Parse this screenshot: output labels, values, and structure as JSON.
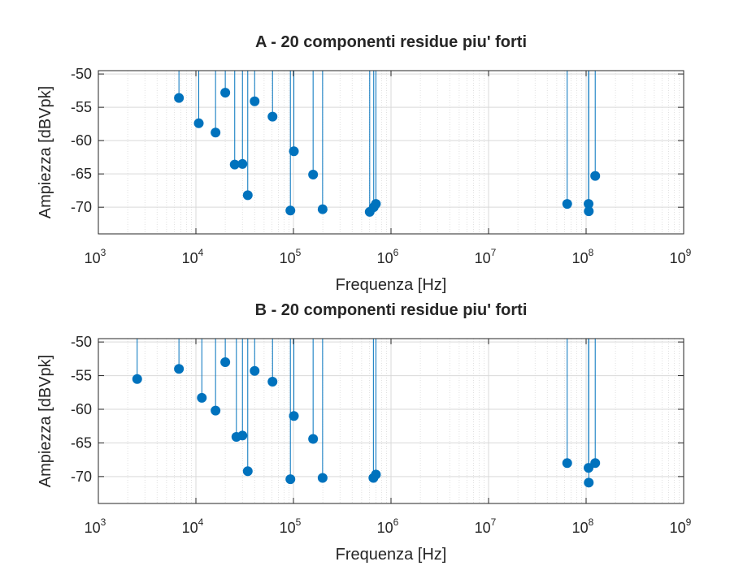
{
  "colors": {
    "series": "#0072bd",
    "grid": "#d9d9d9",
    "axis": "#262626"
  },
  "chart_data": [
    {
      "type": "scatter",
      "style": "stem",
      "title": "A - 20 componenti residue piu' forti",
      "xlabel": "Frequenza [Hz]",
      "ylabel": "Ampiezza [dBVpk]",
      "xscale": "log",
      "xlim": [
        1000,
        1000000000
      ],
      "ylim": [
        -74,
        -49.5
      ],
      "grid": true,
      "xticks": [
        {
          "base": "10",
          "exp": "3"
        },
        {
          "base": "10",
          "exp": "4"
        },
        {
          "base": "10",
          "exp": "5"
        },
        {
          "base": "10",
          "exp": "6"
        },
        {
          "base": "10",
          "exp": "7"
        },
        {
          "base": "10",
          "exp": "8"
        },
        {
          "base": "10",
          "exp": "9"
        }
      ],
      "yticks": [
        "-50",
        "-55",
        "-60",
        "-65",
        "-70"
      ],
      "points": [
        {
          "x": 6700,
          "y": -53.6
        },
        {
          "x": 10700,
          "y": -57.4
        },
        {
          "x": 15900,
          "y": -58.8
        },
        {
          "x": 20000,
          "y": -52.8
        },
        {
          "x": 25000,
          "y": -63.6
        },
        {
          "x": 30000,
          "y": -63.5
        },
        {
          "x": 34000,
          "y": -68.2
        },
        {
          "x": 40000,
          "y": -54.1
        },
        {
          "x": 61000,
          "y": -56.4
        },
        {
          "x": 93000,
          "y": -70.5
        },
        {
          "x": 101000,
          "y": -61.6
        },
        {
          "x": 159000,
          "y": -65.1
        },
        {
          "x": 199000,
          "y": -70.3
        },
        {
          "x": 605000,
          "y": -70.7
        },
        {
          "x": 665000,
          "y": -70.0
        },
        {
          "x": 700000,
          "y": -69.5
        },
        {
          "x": 64000000,
          "y": -69.5
        },
        {
          "x": 106000000,
          "y": -69.5
        },
        {
          "x": 106500000,
          "y": -70.6
        },
        {
          "x": 124000000,
          "y": -65.3
        }
      ]
    },
    {
      "type": "scatter",
      "style": "stem",
      "title": "B - 20 componenti residue piu' forti",
      "xlabel": "Frequenza [Hz]",
      "ylabel": "Ampiezza [dBVpk]",
      "xscale": "log",
      "xlim": [
        1000,
        1000000000
      ],
      "ylim": [
        -74,
        -49.5
      ],
      "grid": true,
      "xticks": [
        {
          "base": "10",
          "exp": "3"
        },
        {
          "base": "10",
          "exp": "4"
        },
        {
          "base": "10",
          "exp": "5"
        },
        {
          "base": "10",
          "exp": "6"
        },
        {
          "base": "10",
          "exp": "7"
        },
        {
          "base": "10",
          "exp": "8"
        },
        {
          "base": "10",
          "exp": "9"
        }
      ],
      "yticks": [
        "-50",
        "-55",
        "-60",
        "-65",
        "-70"
      ],
      "points": [
        {
          "x": 2500,
          "y": -55.5
        },
        {
          "x": 6700,
          "y": -54.0
        },
        {
          "x": 11500,
          "y": -58.3
        },
        {
          "x": 15900,
          "y": -60.2
        },
        {
          "x": 20000,
          "y": -53.0
        },
        {
          "x": 26000,
          "y": -64.1
        },
        {
          "x": 30000,
          "y": -63.9
        },
        {
          "x": 34000,
          "y": -69.2
        },
        {
          "x": 40000,
          "y": -54.3
        },
        {
          "x": 61000,
          "y": -55.9
        },
        {
          "x": 93000,
          "y": -70.4
        },
        {
          "x": 101000,
          "y": -61.0
        },
        {
          "x": 159000,
          "y": -64.4
        },
        {
          "x": 199000,
          "y": -70.2
        },
        {
          "x": 660000,
          "y": -70.2
        },
        {
          "x": 700000,
          "y": -69.7
        },
        {
          "x": 64000000,
          "y": -68.0
        },
        {
          "x": 106000000,
          "y": -68.7
        },
        {
          "x": 106500000,
          "y": -70.9
        },
        {
          "x": 124000000,
          "y": -68.0
        }
      ]
    }
  ]
}
